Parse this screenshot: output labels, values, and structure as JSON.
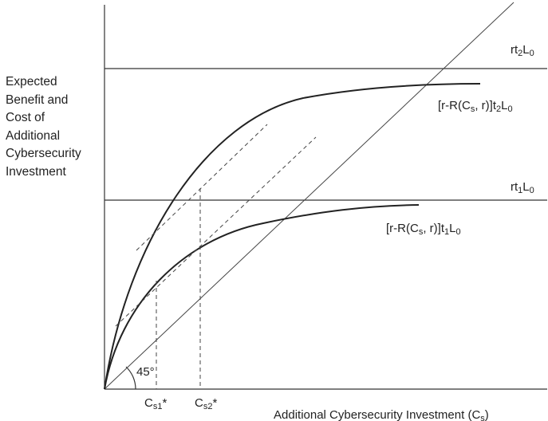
{
  "y_axis_label_lines": [
    "Expected",
    "Benefit and",
    "Cost of",
    "Additional",
    "Cybersecurity",
    "Investment"
  ],
  "x_axis_label": "Additional Cybersecurity Investment (C",
  "x_axis_label_sub": "s",
  "x_axis_label_end": ")",
  "line_rt2": {
    "pre": "rt",
    "sub1": "2",
    "mid": "L",
    "sub2": "0"
  },
  "line_rt1": {
    "pre": "rt",
    "sub1": "1",
    "mid": "L",
    "sub2": "0"
  },
  "curve_t2": {
    "pre": "[r-R(C",
    "sub1": "s",
    "mid": ", r)]t",
    "sub2": "2",
    "end": "L",
    "sub3": "0"
  },
  "curve_t1": {
    "pre": "[r-R(C",
    "sub1": "s",
    "mid": ", r)]t",
    "sub2": "1",
    "end": "L",
    "sub3": "0"
  },
  "angle_label": "45°",
  "cs1_label": {
    "pre": "C",
    "sub": "s1",
    "post": "*"
  },
  "cs2_label": {
    "pre": "C",
    "sub": "s2",
    "post": "*"
  }
}
